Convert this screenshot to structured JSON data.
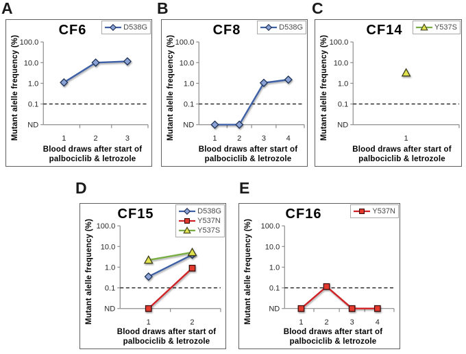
{
  "figure": {
    "y_axis_label": "Mutant alelle frequency (%)",
    "x_axis_label_line1": "Blood draws after start of",
    "x_axis_label_line2": "palbociclib & letrozole",
    "y_tick_labels": [
      "100.0",
      "10.0",
      "1.0",
      "0.1",
      "ND"
    ],
    "nd_label": "ND",
    "threshold_value": 0.1,
    "series_styles": {
      "D538G": {
        "line": "#3e5fa5",
        "marker": "diamond",
        "marker_fill": "#8aa2d6",
        "marker_stroke": "#1f3055"
      },
      "Y537N": {
        "line": "#cf2127",
        "marker": "square",
        "marker_fill": "#e43a2e",
        "marker_stroke": "#3c0f0c"
      },
      "Y537S": {
        "line": "#78ae43",
        "marker": "triangle",
        "marker_fill": "#e0e34d",
        "marker_stroke": "#3c3c1a"
      }
    },
    "axis_color": "#8c8c8c",
    "threshold_line_color": "#1a1a1a"
  },
  "chart_data": [
    {
      "panel": "A",
      "title": "CF6",
      "type": "line",
      "y_scale": "log",
      "ylabel": "Mutant alelle frequency (%)",
      "xlabel": "Blood draws after start of palbociclib & letrozole",
      "y_ticks": [
        "100.0",
        "10.0",
        "1.0",
        "0.1",
        "ND"
      ],
      "threshold": 0.1,
      "x_categories": [
        "1",
        "2",
        "3"
      ],
      "series": [
        {
          "name": "D538G",
          "values": [
            1.1,
            10,
            11.5
          ]
        }
      ]
    },
    {
      "panel": "B",
      "title": "CF8",
      "type": "line",
      "y_scale": "log",
      "ylabel": "Mutant alelle frequency (%)",
      "xlabel": "Blood draws after start of palbociclib & letrozole",
      "y_ticks": [
        "100.0",
        "10.0",
        "1.0",
        "0.1",
        "ND"
      ],
      "threshold": 0.1,
      "x_categories": [
        "1",
        "2",
        "3",
        "4"
      ],
      "series": [
        {
          "name": "D538G",
          "values": [
            "ND",
            "ND",
            1.05,
            1.5
          ]
        }
      ]
    },
    {
      "panel": "C",
      "title": "CF14",
      "type": "line",
      "y_scale": "log",
      "ylabel": "Mutant alelle frequency (%)",
      "xlabel": "Blood draws after start of palbociclib & letrozole",
      "y_ticks": [
        "100.0",
        "10.0",
        "1.0",
        "0.1",
        "ND"
      ],
      "threshold": 0.1,
      "x_categories": [
        "1"
      ],
      "series": [
        {
          "name": "Y537S",
          "values": [
            3.2
          ]
        }
      ]
    },
    {
      "panel": "D",
      "title": "CF15",
      "type": "line",
      "y_scale": "log",
      "ylabel": "Mutant alelle frequency (%)",
      "xlabel": "Blood draws after start of palbociclib & letrozole",
      "y_ticks": [
        "100.0",
        "10.0",
        "1.0",
        "0.1",
        "ND"
      ],
      "threshold": 0.1,
      "x_categories": [
        "1",
        "2"
      ],
      "series": [
        {
          "name": "D538G",
          "values": [
            0.35,
            4.0
          ]
        },
        {
          "name": "Y537N",
          "values": [
            "ND",
            0.9
          ]
        },
        {
          "name": "Y537S",
          "values": [
            2.2,
            5.2
          ]
        }
      ]
    },
    {
      "panel": "E",
      "title": "CF16",
      "type": "line",
      "y_scale": "log",
      "ylabel": "Mutant alelle frequency (%)",
      "xlabel": "Blood draws after start of palbociclib & letrozole",
      "y_ticks": [
        "100.0",
        "10.0",
        "1.0",
        "0.1",
        "ND"
      ],
      "threshold": 0.1,
      "x_categories": [
        "1",
        "2",
        "3",
        "4"
      ],
      "series": [
        {
          "name": "Y537N",
          "values": [
            "ND",
            0.115,
            "ND",
            "ND"
          ]
        }
      ]
    }
  ]
}
